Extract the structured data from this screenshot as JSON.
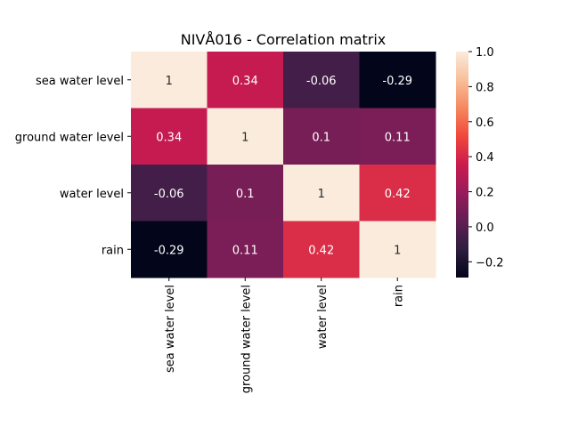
{
  "chart_data": {
    "type": "heatmap",
    "title": "NIVÅ016 - Correlation matrix",
    "xlabel": "",
    "ylabel": "",
    "row_labels": [
      "sea water level",
      "ground water level",
      "water level",
      "rain"
    ],
    "col_labels": [
      "sea water level",
      "ground water level",
      "water level",
      "rain"
    ],
    "values": [
      [
        1,
        0.34,
        -0.06,
        -0.29
      ],
      [
        0.34,
        1,
        0.1,
        0.11
      ],
      [
        -0.06,
        0.1,
        1,
        0.42
      ],
      [
        -0.29,
        0.11,
        0.42,
        1
      ]
    ],
    "value_labels": [
      [
        "1",
        "0.34",
        "-0.06",
        "-0.29"
      ],
      [
        "0.34",
        "1",
        "0.1",
        "0.11"
      ],
      [
        "-0.06",
        "0.1",
        "1",
        "0.42"
      ],
      [
        "-0.29",
        "0.11",
        "0.42",
        "1"
      ]
    ],
    "colorbar": {
      "min": -0.29,
      "max": 1.0,
      "ticks": [
        -0.2,
        0.0,
        0.2,
        0.4,
        0.6,
        0.8,
        1.0
      ],
      "tick_labels": [
        "−0.2",
        "0.0",
        "0.2",
        "0.4",
        "0.6",
        "0.8",
        "1.0"
      ]
    },
    "colormap": [
      "#03051a",
      "#2d1e3f",
      "#611f53",
      "#971c5b",
      "#cb1b4f",
      "#f0473b",
      "#f5885e",
      "#f8bf9a",
      "#faebdd"
    ],
    "legend": "colorbar-right",
    "grid": false
  }
}
